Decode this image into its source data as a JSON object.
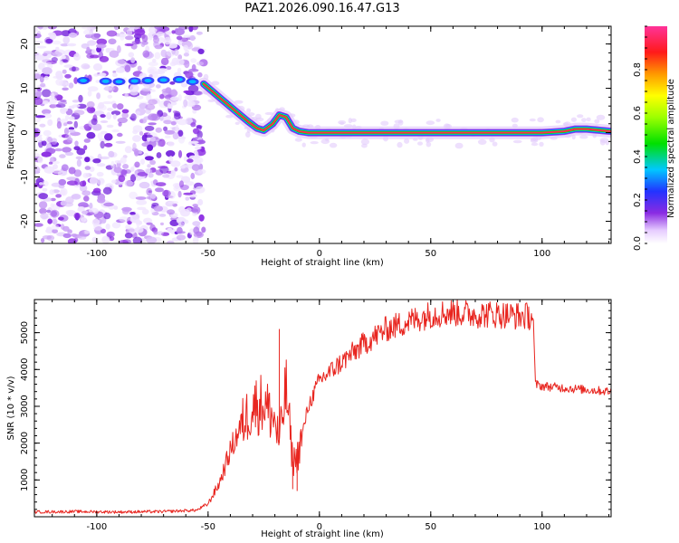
{
  "title": "PAZ1.2026.090.16.47.G13",
  "colors": {
    "snr_line": "#e8251f",
    "track_core": "#ff2a55",
    "track_mid": "#00e000",
    "track_edge": "#00c0ff",
    "noise": "#8a2be2"
  },
  "chart_data": [
    {
      "type": "heatmap",
      "name": "spectrogram",
      "xlabel": "Height of straight line (km)",
      "ylabel": "Frequency (Hz)",
      "xlim": [
        -128,
        131
      ],
      "ylim": [
        -25,
        24
      ],
      "xticks": [
        -100,
        -50,
        0,
        50,
        100
      ],
      "xtick_labels": [
        "-100",
        "-50",
        "0",
        "50",
        "100"
      ],
      "yticks": [
        20,
        10,
        0,
        -10,
        -20
      ],
      "ytick_labels": [
        "20",
        "10",
        "0",
        "-10",
        "-20"
      ],
      "noise_region_km": [
        -128,
        -52
      ],
      "track": {
        "x": [
          -128,
          -110,
          -90,
          -75,
          -62,
          -52,
          -45,
          -38,
          -32,
          -28,
          -25,
          -21,
          -18,
          -15,
          -12,
          -9,
          -5,
          0,
          20,
          40,
          60,
          80,
          100,
          110,
          115,
          120,
          131
        ],
        "y": [
          12,
          11.8,
          11.5,
          11.8,
          12,
          11,
          8,
          5,
          2.5,
          1,
          0.5,
          2,
          4,
          3.5,
          1,
          0.3,
          0,
          0,
          0,
          0,
          0,
          0,
          0,
          0.3,
          0.8,
          0.8,
          0.3
        ]
      },
      "colorbar": {
        "label": "Normalized spectral amplitude",
        "range": [
          0.0,
          1.0
        ],
        "ticks": [
          0.0,
          0.2,
          0.4,
          0.6,
          0.8
        ],
        "tick_labels": [
          "0.0",
          "0.2",
          "0.4",
          "0.6",
          "0.8"
        ]
      }
    },
    {
      "type": "line",
      "name": "snr",
      "xlabel": "Height of straight line (km)",
      "ylabel": "SNR (10 * v/v)",
      "xlim": [
        -128,
        131
      ],
      "ylim": [
        0,
        5900
      ],
      "xticks": [
        -100,
        -50,
        0,
        50,
        100
      ],
      "xtick_labels": [
        "-100",
        "-50",
        "0",
        "50",
        "100"
      ],
      "yticks": [
        1000,
        2000,
        3000,
        4000,
        5000
      ],
      "ytick_labels": [
        "1000",
        "2000",
        "3000",
        "4000",
        "5000"
      ],
      "series": [
        {
          "name": "SNR",
          "x": [
            -128,
            -110,
            -90,
            -70,
            -55,
            -50,
            -45,
            -40,
            -35,
            -30,
            -25,
            -20,
            -18,
            -15,
            -12,
            -10,
            -5,
            0,
            10,
            20,
            30,
            40,
            50,
            60,
            70,
            80,
            90,
            96,
            97,
            100,
            110,
            120,
            131
          ],
          "y": [
            130,
            140,
            130,
            140,
            180,
            350,
            900,
            1800,
            2500,
            3000,
            3100,
            2600,
            2000,
            3500,
            1500,
            1600,
            3000,
            3700,
            4200,
            4700,
            5100,
            5300,
            5500,
            5550,
            5500,
            5500,
            5450,
            5450,
            3600,
            3550,
            3500,
            3450,
            3400
          ]
        }
      ],
      "spikes": [
        {
          "x": -18,
          "y": 5100
        },
        {
          "x": -12,
          "y": 750
        },
        {
          "x": -10,
          "y": 700
        }
      ]
    }
  ]
}
